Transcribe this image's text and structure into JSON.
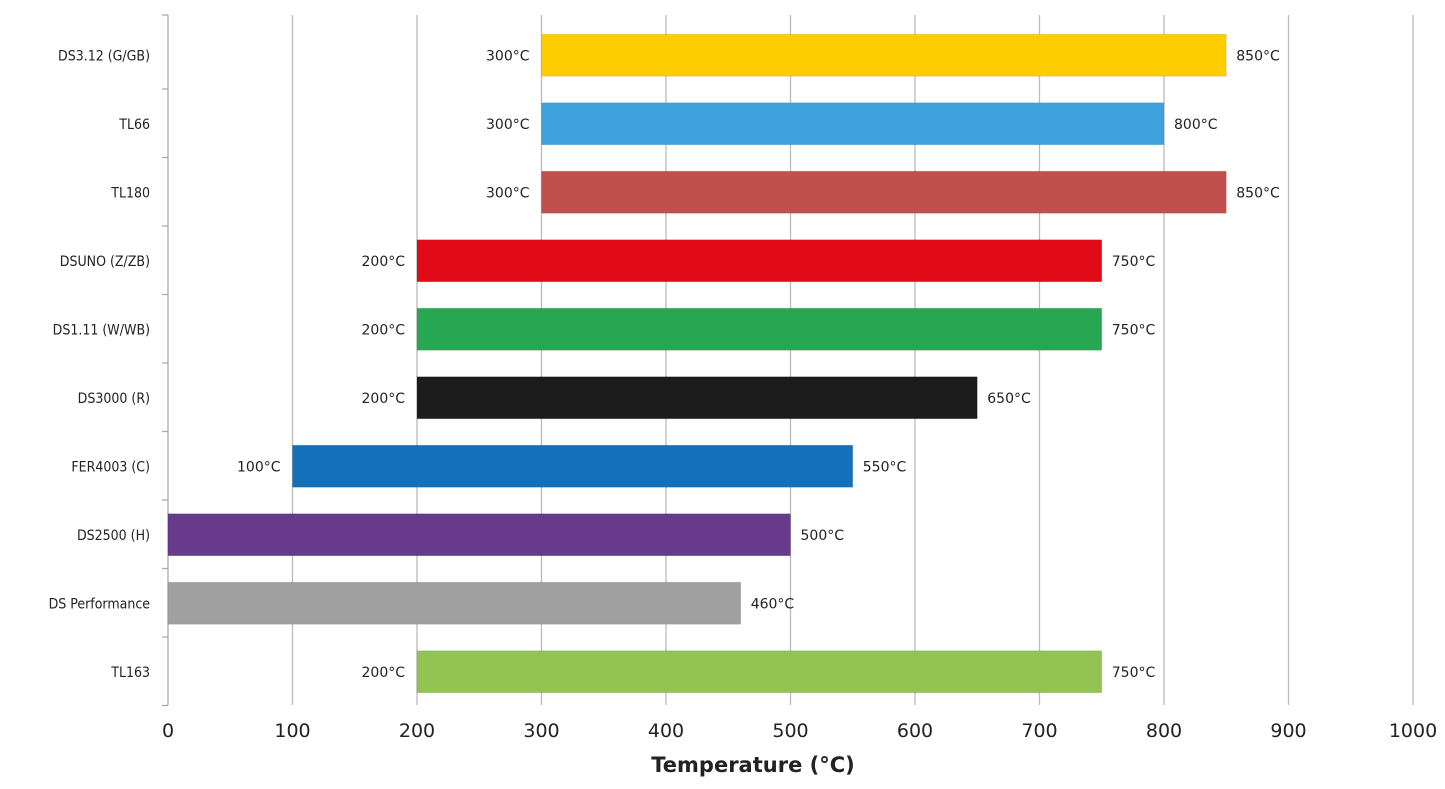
{
  "chart_data": {
    "type": "bar",
    "orientation": "horizontal",
    "subtype": "floating-range",
    "xlabel": "Temperature (°C)",
    "xlim": [
      0,
      1000
    ],
    "xticks": [
      "0",
      "100",
      "200",
      "300",
      "400",
      "500",
      "600",
      "700",
      "800",
      "900",
      "1000"
    ],
    "grid": true,
    "categories": [
      "DS3.12 (G/GB)",
      "TL66",
      "TL180",
      "DSUNO (Z/ZB)",
      "DS1.11 (W/WB)",
      "DS3000 (R)",
      "FER4003 (C)",
      "DS2500 (H)",
      "DS Performance",
      "TL163"
    ],
    "start": [
      300,
      300,
      300,
      200,
      200,
      200,
      100,
      0,
      0,
      200
    ],
    "end": [
      850,
      800,
      850,
      750,
      750,
      650,
      550,
      500,
      460,
      750
    ],
    "start_labels": [
      "300°C",
      "300°C",
      "300°C",
      "200°C",
      "200°C",
      "200°C",
      "100°C",
      null,
      null,
      "200°C"
    ],
    "end_labels": [
      "850°C",
      "800°C",
      "850°C",
      "750°C",
      "750°C",
      "650°C",
      "550°C",
      "500°C",
      "460°C",
      "750°C"
    ],
    "colors": [
      "#FFCC00",
      "#3EA3DC",
      "#C0504D",
      "#E00B16",
      "#27A751",
      "#1C1C1C",
      "#1570BA",
      "#673A8C",
      "#A0A0A0",
      "#93C353"
    ]
  }
}
